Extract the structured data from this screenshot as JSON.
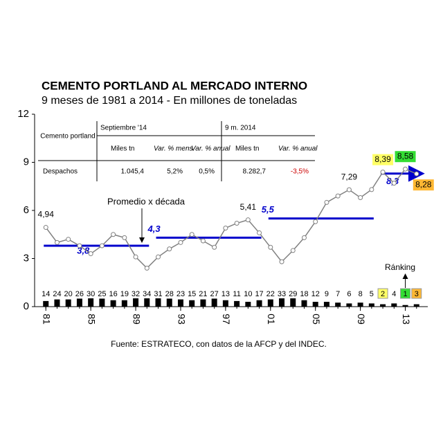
{
  "chart_data": {
    "type": "line",
    "title": "CEMENTO PORTLAND AL MERCADO INTERNO",
    "subtitle": "9 meses de 1981 a 2014 - En millones de toneladas",
    "source": "Fuente: ESTRATECO, con datos de la AFCP y del INDEC.",
    "x": [
      1981,
      1982,
      1983,
      1984,
      1985,
      1986,
      1987,
      1988,
      1989,
      1990,
      1991,
      1992,
      1993,
      1994,
      1995,
      1996,
      1997,
      1998,
      1999,
      2000,
      2001,
      2002,
      2003,
      2004,
      2005,
      2006,
      2007,
      2008,
      2009,
      2010,
      2011,
      2012,
      2013,
      2014
    ],
    "series": [
      {
        "color": "#808080",
        "values": [
          4.94,
          4.0,
          4.2,
          3.8,
          3.3,
          3.8,
          4.5,
          4.3,
          3.1,
          2.4,
          3.1,
          3.6,
          4.0,
          4.5,
          4.1,
          3.7,
          4.9,
          5.2,
          5.41,
          4.6,
          3.7,
          2.8,
          3.5,
          4.3,
          5.3,
          6.5,
          6.9,
          7.29,
          6.8,
          7.3,
          8.39,
          7.7,
          8.58,
          8.28
        ],
        "value_labels": [
          "4,94",
          null,
          null,
          null,
          null,
          null,
          null,
          null,
          null,
          null,
          null,
          null,
          null,
          null,
          null,
          null,
          null,
          null,
          "5,41",
          null,
          null,
          null,
          null,
          null,
          null,
          null,
          null,
          "7,29",
          null,
          null,
          "8,39",
          null,
          "8,58",
          "8,28"
        ],
        "label_colors": [
          null,
          null,
          null,
          null,
          null,
          null,
          null,
          null,
          null,
          null,
          null,
          null,
          null,
          null,
          null,
          null,
          null,
          null,
          null,
          null,
          null,
          null,
          null,
          null,
          null,
          null,
          null,
          null,
          null,
          null,
          "#ffff66",
          null,
          "#33dd33",
          "#ffb833"
        ]
      }
    ],
    "bars": {
      "color": "#000000",
      "values": [
        0.35,
        0.45,
        0.45,
        0.5,
        0.55,
        0.5,
        0.4,
        0.4,
        0.6,
        0.65,
        0.55,
        0.5,
        0.45,
        0.4,
        0.45,
        0.5,
        0.4,
        0.35,
        0.3,
        0.4,
        0.45,
        0.6,
        0.55,
        0.4,
        0.3,
        0.3,
        0.25,
        0.2,
        0.25,
        0.2,
        0.15,
        0.2,
        0.1,
        0.15
      ],
      "ranking": [
        "14",
        "24",
        "20",
        "26",
        "30",
        "25",
        "16",
        "19",
        "32",
        "34",
        "31",
        "28",
        "23",
        "15",
        "21",
        "27",
        "13",
        "11",
        "10",
        "17",
        "22",
        "33",
        "29",
        "18",
        "12",
        "9",
        "7",
        "6",
        "8",
        "5",
        "2",
        "4",
        "1",
        "3"
      ],
      "ranking_colors": [
        "#ffffff",
        "#ffffff",
        "#ffffff",
        "#ffffff",
        "#ffffff",
        "#ffffff",
        "#ffffff",
        "#ffffff",
        "#ffffff",
        "#ffffff",
        "#ffffff",
        "#ffffff",
        "#ffffff",
        "#ffffff",
        "#ffffff",
        "#ffffff",
        "#ffffff",
        "#ffffff",
        "#ffffff",
        "#ffffff",
        "#ffffff",
        "#ffffff",
        "#ffffff",
        "#ffffff",
        "#ffffff",
        "#ffffff",
        "#ffffff",
        "#ffffff",
        "#ffffff",
        "#ffffff",
        "#ffff66",
        "#ffffff",
        "#33dd33",
        "#ffb833"
      ]
    },
    "decade_averages": {
      "color": "#0000cc",
      "label": "Promedio x década",
      "items": [
        {
          "start": 1981,
          "end": 1990,
          "value": 3.8,
          "label": "3,8"
        },
        {
          "start": 1991,
          "end": 2000,
          "value": 4.3,
          "label": "4,3"
        },
        {
          "start": 2001,
          "end": 2010,
          "value": 5.5,
          "label": "5,5"
        },
        {
          "start": 2011,
          "end": 2014,
          "value": 8.3,
          "label": "8,3"
        }
      ]
    },
    "ranking_label": "Ránking",
    "xlim": [
      1980,
      2015
    ],
    "xticks": [
      {
        "value": 1981,
        "label": "81"
      },
      {
        "value": 1985,
        "label": "85"
      },
      {
        "value": 1989,
        "label": "89"
      },
      {
        "value": 1993,
        "label": "93"
      },
      {
        "value": 1997,
        "label": "97"
      },
      {
        "value": 2001,
        "label": "01"
      },
      {
        "value": 2005,
        "label": "05"
      },
      {
        "value": 2009,
        "label": "09"
      },
      {
        "value": 2013,
        "label": "13"
      }
    ],
    "ylim": [
      0,
      12
    ],
    "yticks": [
      0,
      3,
      6,
      9,
      12
    ],
    "table": {
      "corner": "Cemento portland",
      "groups": [
        "Septiembre '14",
        "9 m. 2014"
      ],
      "columns": [
        "Miles tn",
        "Var. % mens.",
        "Var. % anual",
        "Miles tn",
        "Var. % anual"
      ],
      "row": [
        "Despachos",
        "1.045,4",
        "5,2%",
        "0,5%",
        "8.282,7",
        "-3,5%"
      ]
    }
  }
}
